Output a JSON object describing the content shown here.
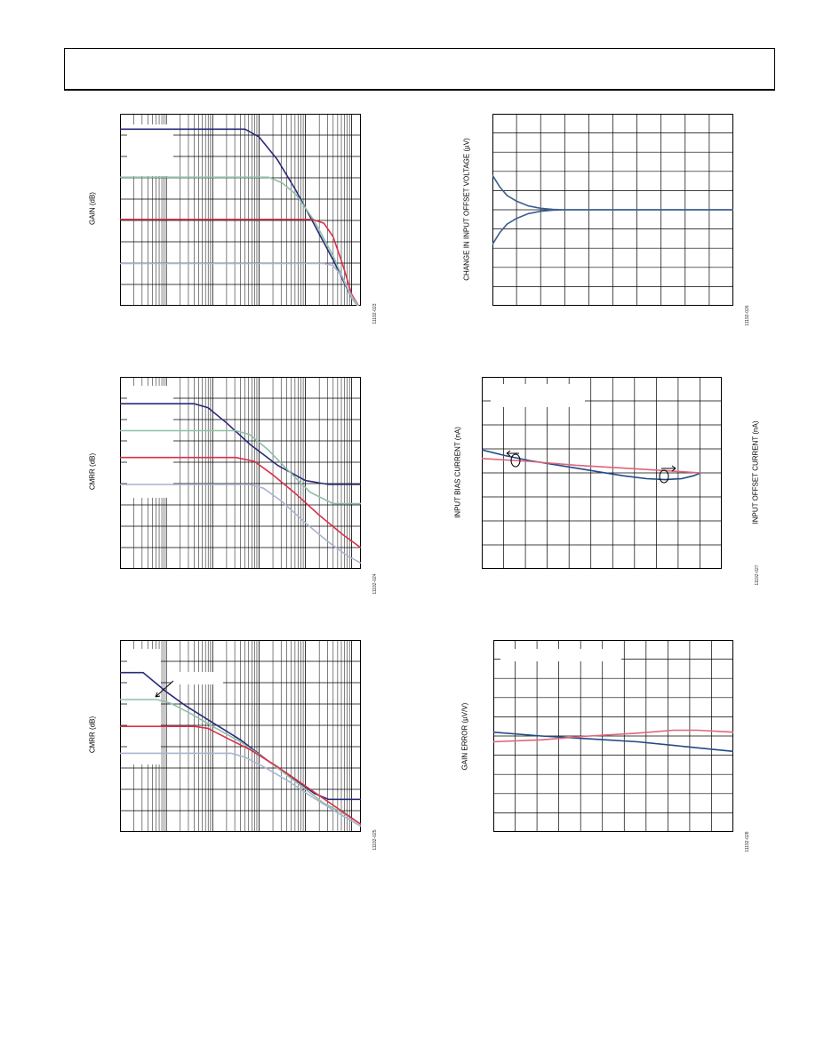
{
  "colors": {
    "navy": "#2a2a7a",
    "green": "#8fbfa6",
    "red": "#d9304a",
    "lilac": "#aab4cf",
    "steel": "#3c5f8f",
    "pink": "#e0647a",
    "blue": "#1f4a85"
  },
  "chart_data": [
    {
      "id": "gain-vs-frequency",
      "type": "line",
      "xscale": "log",
      "ylabel": "GAIN (dB)",
      "figure_id": "11192-023",
      "series": [
        {
          "color": "navy",
          "points": [
            [
              0,
              0.92
            ],
            [
              2.7,
              0.92
            ],
            [
              3,
              0.88
            ],
            [
              3.4,
              0.76
            ],
            [
              3.8,
              0.6
            ],
            [
              4.2,
              0.42
            ],
            [
              4.6,
              0.24
            ],
            [
              5,
              0.04
            ],
            [
              5.2,
              -0.02
            ]
          ]
        },
        {
          "color": "green",
          "points": [
            [
              0,
              0.67
            ],
            [
              3.2,
              0.67
            ],
            [
              3.5,
              0.64
            ],
            [
              3.8,
              0.58
            ],
            [
              4.2,
              0.44
            ],
            [
              4.6,
              0.26
            ],
            [
              5,
              0.04
            ],
            [
              5.2,
              -0.02
            ]
          ]
        },
        {
          "color": "red",
          "points": [
            [
              0,
              0.45
            ],
            [
              4.15,
              0.45
            ],
            [
              4.4,
              0.43
            ],
            [
              4.6,
              0.36
            ],
            [
              4.8,
              0.22
            ],
            [
              5,
              0.06
            ],
            [
              5.2,
              -0.02
            ]
          ]
        },
        {
          "color": "lilac",
          "points": [
            [
              0,
              0.22
            ],
            [
              4.4,
              0.22
            ],
            [
              4.6,
              0.21
            ],
            [
              4.8,
              0.15
            ],
            [
              5,
              0.05
            ],
            [
              5.2,
              -0.02
            ]
          ]
        }
      ]
    },
    {
      "id": "cmrr-vs-frequency-1",
      "type": "line",
      "xscale": "log",
      "ylabel": "CMRR (dB)",
      "figure_id": "11192-024",
      "series": [
        {
          "color": "navy",
          "points": [
            [
              0,
              0.86
            ],
            [
              1.6,
              0.86
            ],
            [
              1.9,
              0.84
            ],
            [
              2.3,
              0.76
            ],
            [
              2.8,
              0.65
            ],
            [
              3.4,
              0.54
            ],
            [
              4,
              0.46
            ],
            [
              4.5,
              0.44
            ],
            [
              5.2,
              0.44
            ]
          ]
        },
        {
          "color": "green",
          "points": [
            [
              0,
              0.72
            ],
            [
              2.5,
              0.72
            ],
            [
              2.8,
              0.7
            ],
            [
              3.2,
              0.62
            ],
            [
              3.6,
              0.52
            ],
            [
              4.1,
              0.4
            ],
            [
              4.6,
              0.34
            ],
            [
              5.2,
              0.34
            ]
          ]
        },
        {
          "color": "red",
          "points": [
            [
              0,
              0.58
            ],
            [
              2.5,
              0.58
            ],
            [
              2.9,
              0.56
            ],
            [
              3.3,
              0.49
            ],
            [
              3.8,
              0.39
            ],
            [
              4.3,
              0.28
            ],
            [
              4.8,
              0.18
            ],
            [
              5.2,
              0.11
            ]
          ]
        },
        {
          "color": "lilac",
          "points": [
            [
              0,
              0.44
            ],
            [
              2.8,
              0.44
            ],
            [
              3.1,
              0.42
            ],
            [
              3.5,
              0.35
            ],
            [
              4,
              0.24
            ],
            [
              4.5,
              0.14
            ],
            [
              4.9,
              0.07
            ],
            [
              5.2,
              0.03
            ]
          ]
        }
      ]
    },
    {
      "id": "cmrr-vs-frequency-2",
      "type": "line",
      "xscale": "log",
      "ylabel": "CMRR (dB)",
      "figure_id": "11192-025",
      "series": [
        {
          "color": "navy",
          "points": [
            [
              0,
              0.83
            ],
            [
              0.5,
              0.83
            ],
            [
              0.7,
              0.79
            ],
            [
              1,
              0.73
            ],
            [
              1.4,
              0.66
            ],
            [
              2,
              0.57
            ],
            [
              2.6,
              0.48
            ],
            [
              3.2,
              0.37
            ],
            [
              3.8,
              0.27
            ],
            [
              4.2,
              0.2
            ],
            [
              4.5,
              0.17
            ],
            [
              5.2,
              0.17
            ]
          ]
        },
        {
          "color": "green",
          "points": [
            [
              0,
              0.69
            ],
            [
              0.8,
              0.69
            ],
            [
              1.1,
              0.67
            ],
            [
              1.5,
              0.62
            ],
            [
              2,
              0.55
            ],
            [
              2.6,
              0.47
            ],
            [
              3.2,
              0.37
            ],
            [
              3.8,
              0.26
            ],
            [
              4.4,
              0.15
            ],
            [
              4.8,
              0.1
            ],
            [
              5.2,
              0.04
            ]
          ]
        },
        {
          "color": "red",
          "points": [
            [
              0,
              0.55
            ],
            [
              1.6,
              0.55
            ],
            [
              1.9,
              0.54
            ],
            [
              2.3,
              0.49
            ],
            [
              2.8,
              0.43
            ],
            [
              3.4,
              0.34
            ],
            [
              4,
              0.24
            ],
            [
              4.6,
              0.14
            ],
            [
              5.2,
              0.04
            ]
          ]
        },
        {
          "color": "lilac",
          "points": [
            [
              0,
              0.41
            ],
            [
              2.4,
              0.41
            ],
            [
              2.7,
              0.39
            ],
            [
              3.1,
              0.34
            ],
            [
              3.6,
              0.27
            ],
            [
              4.1,
              0.19
            ],
            [
              4.7,
              0.1
            ],
            [
              5.2,
              0.03
            ]
          ]
        }
      ]
    },
    {
      "id": "offset-voltage-change",
      "type": "line",
      "xscale": "linear",
      "ylabel": "CHANGE IN INPUT OFFSET VOLTAGE (µV)",
      "figure_id": "11192-026",
      "series": [
        {
          "color": "steel",
          "points": [
            [
              0,
              0.68
            ],
            [
              0.3,
              0.62
            ],
            [
              0.6,
              0.575
            ],
            [
              1,
              0.545
            ],
            [
              1.5,
              0.52
            ],
            [
              2,
              0.508
            ],
            [
              2.5,
              0.502
            ],
            [
              3,
              0.5
            ],
            [
              10,
              0.5
            ]
          ]
        },
        {
          "color": "steel",
          "points": [
            [
              0,
              0.32
            ],
            [
              0.3,
              0.38
            ],
            [
              0.6,
              0.425
            ],
            [
              1,
              0.455
            ],
            [
              1.5,
              0.48
            ],
            [
              2,
              0.492
            ],
            [
              2.5,
              0.498
            ],
            [
              3,
              0.5
            ],
            [
              10,
              0.5
            ]
          ]
        }
      ]
    },
    {
      "id": "bias-offset-current",
      "type": "line",
      "xscale": "linear",
      "ylabel": "INPUT BIAS CURRENT (nA)",
      "ylabel_right": "INPUT OFFSET CURRENT (nA)",
      "figure_id": "11192-027",
      "series": [
        {
          "color": "blue",
          "points": [
            [
              0,
              0.62
            ],
            [
              1,
              0.59
            ],
            [
              2,
              0.565
            ],
            [
              3,
              0.545
            ],
            [
              4,
              0.525
            ],
            [
              5,
              0.505
            ],
            [
              6,
              0.485
            ],
            [
              7,
              0.47
            ],
            [
              7.8,
              0.465
            ],
            [
              8.5,
              0.47
            ],
            [
              9,
              0.485
            ],
            [
              9.3,
              0.5
            ]
          ]
        },
        {
          "color": "pink",
          "points": [
            [
              0,
              0.575
            ],
            [
              2,
              0.56
            ],
            [
              4,
              0.54
            ],
            [
              6,
              0.525
            ],
            [
              8,
              0.51
            ],
            [
              9.3,
              0.5
            ]
          ]
        }
      ]
    },
    {
      "id": "gain-error",
      "type": "line",
      "xscale": "linear",
      "ylabel": "GAIN ERROR (µV/V)",
      "figure_id": "11192-028",
      "series": [
        {
          "color": "blue",
          "points": [
            [
              0,
              0.52
            ],
            [
              2,
              0.5
            ],
            [
              4,
              0.485
            ],
            [
              6,
              0.47
            ],
            [
              8,
              0.445
            ],
            [
              10,
              0.42
            ]
          ]
        },
        {
          "color": "pink",
          "points": [
            [
              0,
              0.47
            ],
            [
              2,
              0.48
            ],
            [
              4,
              0.5
            ],
            [
              6,
              0.515
            ],
            [
              7.5,
              0.53
            ],
            [
              8.5,
              0.53
            ],
            [
              10,
              0.52
            ]
          ]
        }
      ]
    }
  ]
}
